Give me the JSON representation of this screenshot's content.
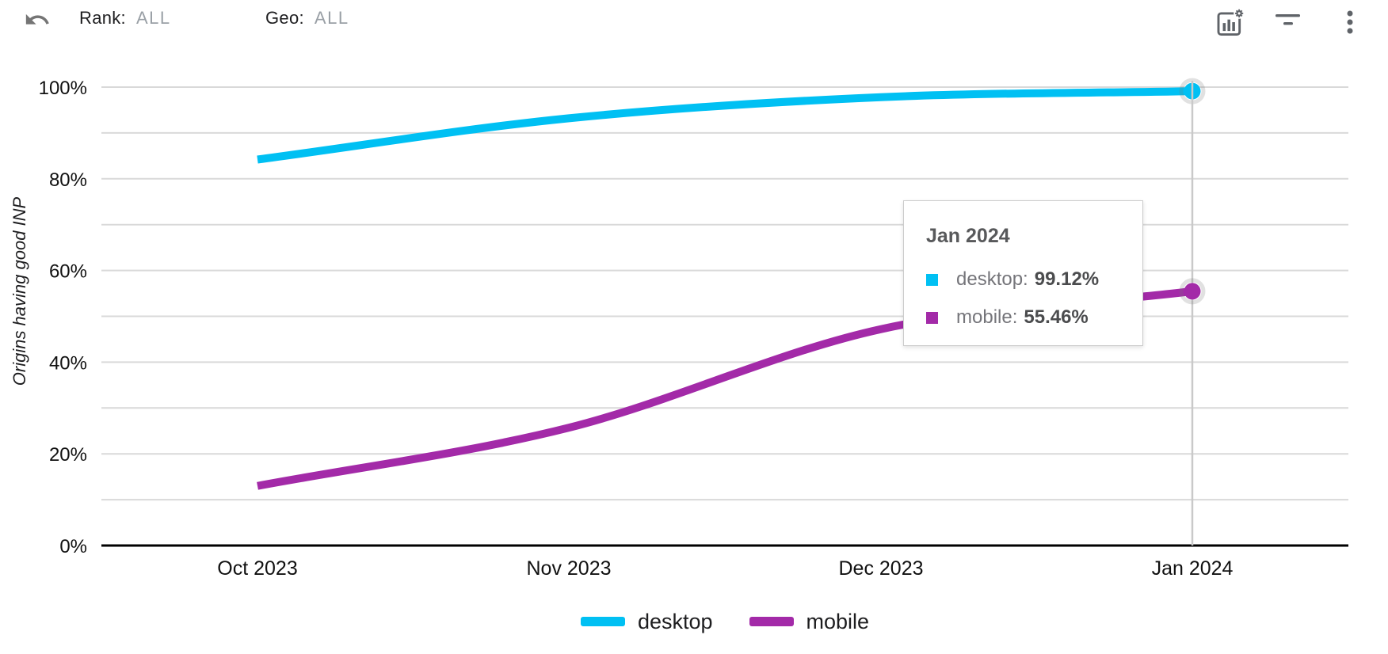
{
  "header": {
    "rank_label": "Rank:",
    "rank_value": "ALL",
    "geo_label": "Geo:",
    "geo_value": "ALL",
    "icons": [
      "undo-icon",
      "chart-settings-icon",
      "filter-icon",
      "kebab-menu-icon"
    ]
  },
  "colors": {
    "desktop": "#00c0f3",
    "mobile": "#a32aa8",
    "grid": "#d9d9d9",
    "axis": "#000000",
    "crosshair": "#c9c9c9",
    "icon_gray": "#5f6368",
    "undo_gray": "#757575"
  },
  "chart_data": {
    "type": "line",
    "title": "",
    "x": [
      "Oct 2023",
      "Nov 2023",
      "Dec 2023",
      "Jan 2024"
    ],
    "series": [
      {
        "name": "desktop",
        "color": "#00c0f3",
        "values": [
          84.2,
          93.2,
          97.8,
          99.12
        ]
      },
      {
        "name": "mobile",
        "color": "#a32aa8",
        "values": [
          13.0,
          25.7,
          47.2,
          55.46
        ]
      }
    ],
    "xlabel": "",
    "ylabel": "Origins having good INP",
    "ylim": [
      0,
      100
    ],
    "yticks_labeled": [
      0,
      20,
      40,
      60,
      80,
      100
    ],
    "ytick_minor_step": 10,
    "ytick_format": "{v}%",
    "grid": true,
    "legend_position": "bottom",
    "highlight_x": "Jan 2024"
  },
  "tooltip": {
    "title": "Jan 2024",
    "rows": [
      {
        "series": "desktop",
        "label": "desktop:",
        "value": "99.12%",
        "color": "#00c0f3"
      },
      {
        "series": "mobile",
        "label": "mobile:",
        "value": "55.46%",
        "color": "#a32aa8"
      }
    ]
  },
  "legend": {
    "items": [
      {
        "label": "desktop",
        "color": "#00c0f3"
      },
      {
        "label": "mobile",
        "color": "#a32aa8"
      }
    ]
  }
}
